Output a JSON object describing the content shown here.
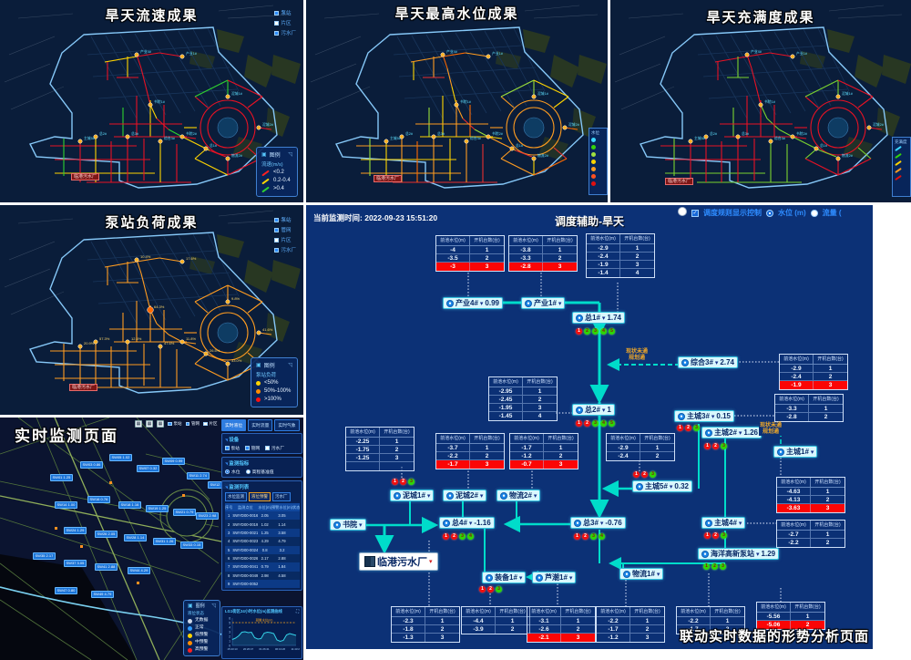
{
  "maps": {
    "flow": {
      "title": "旱天流速成果",
      "layers": [
        "泵站",
        "片区",
        "污水厂"
      ],
      "legend_header": "图例",
      "legend_subtitle": "流速(m/s)",
      "legend_items": [
        {
          "color": "#ff2020",
          "label": "<0.2"
        },
        {
          "color": "#ffd400",
          "label": "0.2-0.4"
        },
        {
          "color": "#2fd32f",
          "label": ">0.4"
        }
      ],
      "plant_label": "临港污水厂"
    },
    "level": {
      "title": "旱天最高水位成果",
      "edge_legend_title": "水位",
      "edge_colors": [
        "#3ad6ff",
        "#35d30a",
        "#a0e040",
        "#ffd400",
        "#ff9c20",
        "#ff5020",
        "#e01010"
      ],
      "plant_label": "临港污水厂"
    },
    "fullness": {
      "title": "旱天充满度成果",
      "edge_legend_title": "充满度",
      "edge_colors": [
        "#3ad6ff",
        "#35d30a",
        "#ffd400",
        "#ff9c20",
        "#e01010"
      ],
      "plant_label": "临港污水厂"
    },
    "load": {
      "title": "泵站负荷成果",
      "layers": [
        "泵站",
        "管网",
        "片区",
        "污水厂"
      ],
      "legend_header": "图例",
      "legend_subtitle": "泵站负荷",
      "legend_items": [
        {
          "color": "#ffd400",
          "label": "<50%"
        },
        {
          "color": "#ff8c00",
          "label": "50%-100%"
        },
        {
          "color": "#ff1010",
          "label": ">100%"
        }
      ],
      "plant_label": "临港污水厂",
      "station_loads": [
        "10.4%",
        "17.6%",
        "64.3%",
        "11.8%",
        "9.8%",
        "41.6%",
        "33.0%",
        "26.5%",
        "57.3%",
        "12.4%",
        "47.6%",
        "20.9%"
      ]
    },
    "station_names": [
      "产业4#",
      "产业1#",
      "书院1#",
      "书院2#",
      "泥城1#",
      "泥城2#",
      "物流2#",
      "总1#",
      "总2#",
      "总3#",
      "综合3#",
      "主城5#"
    ]
  },
  "monitor": {
    "title": "实时监测页面",
    "tabs": [
      {
        "label": "实时液位",
        "active": true
      },
      {
        "label": "实时流量",
        "active": false
      },
      {
        "label": "实时气象",
        "active": false
      }
    ],
    "toolbar_layers": [
      {
        "label": "泵站",
        "checked": true
      },
      {
        "label": "管网",
        "checked": true
      },
      {
        "label": "片区",
        "checked": false
      }
    ],
    "device_section": {
      "title": "设备",
      "items": [
        {
          "label": "泵站",
          "checked": true
        },
        {
          "label": "管网",
          "checked": true
        },
        {
          "label": "污水厂",
          "checked": false
        }
      ]
    },
    "metric_section": {
      "title": "监测指标",
      "options": [
        {
          "label": "水位",
          "selected": true
        },
        {
          "label": "高程基准值",
          "selected": false
        }
      ]
    },
    "list_section": {
      "title": "监测列表",
      "buttons": [
        {
          "label": "水位监测",
          "active": false
        },
        {
          "label": "液位预警",
          "active": true
        },
        {
          "label": "污水厂",
          "active": false
        }
      ],
      "columns": [
        "序号",
        "监测点位",
        "水位(m)",
        "预警水位(m)",
        "状态"
      ],
      "rows": [
        [
          "1",
          "SWYD00-0016",
          "2.05",
          "3.05"
        ],
        [
          "2",
          "SWYD00-0019",
          "1.02",
          "1.14"
        ],
        [
          "3",
          "SWYD00-0021",
          "1.25",
          "3.58"
        ],
        [
          "4",
          "SWYD00-0023",
          "4.29",
          "4.79"
        ],
        [
          "5",
          "SWYD00-0024",
          "0.8",
          "3.2"
        ],
        [
          "6",
          "SWYD00-0026",
          "2.17",
          "2.88"
        ],
        [
          "7",
          "SWYD00-0041",
          "0.79",
          "1.84"
        ],
        [
          "8",
          "SWYD00-0049",
          "2.98",
          "4.58"
        ],
        [
          "9",
          "SWYD00-0052",
          "",
          ""
        ]
      ]
    },
    "legend": {
      "header": "图例",
      "subtitle": "液位状态",
      "items": [
        {
          "color": "#cfd8e8",
          "label": "无数据"
        },
        {
          "color": "#2e9bff",
          "label": "正常"
        },
        {
          "color": "#ffd400",
          "label": "低预警"
        },
        {
          "color": "#ff8c00",
          "label": "中预警"
        },
        {
          "color": "#ff2020",
          "label": "高预警"
        }
      ]
    },
    "chart": {
      "title": "LG1街区24小时水位(m)监测曲线",
      "threshold_label": "预警水位(m)",
      "threshold": 5,
      "y_ticks": [
        "6",
        "5",
        "4",
        "3",
        "2",
        "1",
        "0"
      ],
      "x_ticks": [
        "15:43:13",
        "20:26:47",
        "01:26:41",
        "06:13:26",
        "11:43:20"
      ],
      "series": [
        1.3,
        1.6,
        2.1,
        2.9,
        3.0,
        2.8,
        2.9,
        1.7,
        1.4,
        1.5,
        2.7,
        2.9,
        2.8,
        2.6,
        1.2,
        0.9,
        1.1,
        2.3,
        2.6,
        2.4,
        2.2
      ]
    },
    "map_labels": [
      "SW01 1.25",
      "SW03 0.86",
      "SW05 1.02",
      "SW07 0.32",
      "SW09 0.99",
      "SW11 2.74",
      "SW12 1.74",
      "SW14 1.00",
      "SW16 0.76",
      "SW18 1.16",
      "SW19 1.25",
      "SW21 0.79",
      "SW23 2.98",
      "SW24 1.29",
      "SW26 2.05",
      "SW28 1.14",
      "SW31 1.26",
      "SW33 0.15",
      "SW35 2.17",
      "SW37 3.05",
      "SW41 2.88",
      "SW44 4.29",
      "SW47 0.80",
      "SW49 4.79"
    ]
  },
  "dispatch": {
    "time_label": "当前监测时间:",
    "time_value": "2022-09-23 15:51:20",
    "title": "调度辅助-旱天",
    "rule_toggle_label": "调度规则显示控制",
    "radio_level": "水位 (m)",
    "radio_flow": "流量 (",
    "caption": "联动实时数据的形势分析页面",
    "table_columns": [
      "前池水位(m)",
      "开机台数(台)"
    ],
    "tables": {
      "t1": {
        "rows": [
          [
            "-4",
            "1"
          ],
          [
            "-3.5",
            "2"
          ],
          [
            "-3",
            "3"
          ]
        ],
        "red": 2
      },
      "t2": {
        "rows": [
          [
            "-3.8",
            "1"
          ],
          [
            "-3.3",
            "2"
          ],
          [
            "-2.8",
            "3"
          ]
        ],
        "red": 2
      },
      "t3": {
        "rows": [
          [
            "-2.9",
            "1"
          ],
          [
            "-2.4",
            "2"
          ],
          [
            "-1.9",
            "3"
          ],
          [
            "-1.4",
            "4"
          ]
        ],
        "red": -1
      },
      "t4": {
        "rows": [
          [
            "-2.9",
            "1"
          ],
          [
            "-2.4",
            "2"
          ],
          [
            "-1.9",
            "3"
          ]
        ],
        "red": 2
      },
      "t5": {
        "rows": [
          [
            "-2.95",
            "1"
          ],
          [
            "-2.45",
            "2"
          ],
          [
            "-1.95",
            "3"
          ],
          [
            "-1.45",
            "4"
          ]
        ],
        "red": -1
      },
      "t6": {
        "rows": [
          [
            "-3.3",
            "1"
          ],
          [
            "-2.8",
            "2"
          ]
        ],
        "red": -1
      },
      "t7": {
        "rows": [
          [
            "-2.25",
            "1"
          ],
          [
            "-1.75",
            "2"
          ],
          [
            "-1.25",
            "3"
          ],
          [
            "",
            ""
          ]
        ],
        "red": -1
      },
      "t8": {
        "rows": [
          [
            "-3.7",
            "1"
          ],
          [
            "-2.2",
            "2"
          ],
          [
            "-1.7",
            "3"
          ]
        ],
        "red": 2
      },
      "t9": {
        "rows": [
          [
            "-1.7",
            "1"
          ],
          [
            "-1.2",
            "2"
          ],
          [
            "-0.7",
            "3"
          ]
        ],
        "red": 2
      },
      "t10": {
        "rows": [
          [
            "-2.9",
            "1"
          ],
          [
            "-2.4",
            "2"
          ]
        ],
        "red": -1
      },
      "t11": {
        "rows": [
          [
            "-4.63",
            "1"
          ],
          [
            "-4.13",
            "2"
          ],
          [
            "-3.63",
            "3"
          ]
        ],
        "red": 2
      },
      "t12": {
        "rows": [
          [
            "-2.7",
            "1"
          ],
          [
            "-2.2",
            "2"
          ]
        ],
        "red": -1
      },
      "t13": {
        "rows": [
          [
            "-2.3",
            "1"
          ],
          [
            "-1.8",
            "2"
          ],
          [
            "-1.3",
            "3"
          ]
        ],
        "red": -1
      },
      "t14": {
        "rows": [
          [
            "-4.4",
            "1"
          ],
          [
            "-3.9",
            "2"
          ]
        ],
        "red": -1
      },
      "t15": {
        "rows": [
          [
            "-3.1",
            "1"
          ],
          [
            "-2.6",
            "2"
          ],
          [
            "-2.1",
            "3"
          ]
        ],
        "red": 2
      },
      "t16": {
        "rows": [
          [
            "-2.2",
            "1"
          ],
          [
            "-1.7",
            "2"
          ],
          [
            "-1.2",
            "3"
          ]
        ],
        "red": -1
      },
      "t17": {
        "rows": [
          [
            "-2.2",
            "1"
          ],
          [
            "-1.7",
            "2"
          ]
        ],
        "red": -1
      },
      "t18": {
        "rows": [
          [
            "-5.56",
            "1"
          ],
          [
            "-5.06",
            "2"
          ]
        ],
        "red": 1
      }
    },
    "nodes": {
      "cy4": {
        "label": "产业4#",
        "value": "0.99"
      },
      "cy1": {
        "label": "产业1#",
        "value": ""
      },
      "z1": {
        "label": "总1#",
        "value": "1.74"
      },
      "zh3": {
        "label": "综合3#",
        "value": "2.74"
      },
      "z2": {
        "label": "总2#",
        "value": "1"
      },
      "zc3": {
        "label": "主城3#",
        "value": "0.15"
      },
      "zc2": {
        "label": "主城2#",
        "value": "1.26"
      },
      "zc1": {
        "label": "主城1#",
        "value": ""
      },
      "zc5": {
        "label": "主城5#",
        "value": "0.32"
      },
      "nc1": {
        "label": "泥城1#",
        "value": ""
      },
      "nc2": {
        "label": "泥城2#",
        "value": ""
      },
      "wl2": {
        "label": "物流2#",
        "value": ""
      },
      "sy": {
        "label": "书院",
        "value": ""
      },
      "z4": {
        "label": "总4#",
        "value": "-1.16"
      },
      "z3": {
        "label": "总3#",
        "value": "-0.76"
      },
      "zc4": {
        "label": "主城4#",
        "value": ""
      },
      "hy": {
        "label": "海洋高新泵站",
        "value": "1.29"
      },
      "wl1": {
        "label": "物流1#",
        "value": ""
      },
      "zb1": {
        "label": "装备1#",
        "value": ""
      },
      "lc1": {
        "label": "芦潮1#",
        "value": ""
      },
      "wsc": {
        "label": "临港污水厂",
        "value": "",
        "plant": true
      }
    },
    "dot_groups": {
      "z1": [
        "r1",
        "g2",
        "g3",
        "g4",
        "g5"
      ],
      "z2": [
        "r1",
        "r2",
        "g3",
        "g4",
        "g5"
      ],
      "zc3": [
        "r1",
        "r2",
        "g3"
      ],
      "zc2": [
        "r1",
        "r2",
        "g3"
      ],
      "zc5": [
        "r1",
        "r2",
        "g3"
      ],
      "nc1": [
        "r1",
        "r2",
        "g3"
      ],
      "z4": [
        "r1",
        "r2",
        "g3",
        "g4"
      ],
      "z3": [
        "r1",
        "r2",
        "g3",
        "g4"
      ],
      "zc4": [
        "r1",
        "r2",
        "g3"
      ],
      "hy": [
        "g1",
        "g2",
        "g3"
      ],
      "zb1": [
        "r1",
        "r2",
        "g3"
      ]
    },
    "flow_labels": {
      "f1": [
        "现状未通",
        "规划通"
      ],
      "f2": [
        "现状未通",
        "规划通"
      ]
    }
  }
}
